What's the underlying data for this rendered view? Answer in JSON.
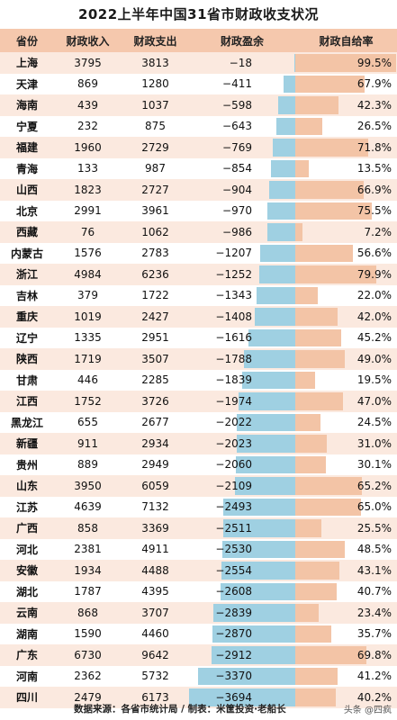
{
  "title": "2022上半年中国31省市财政收支状况",
  "headers": [
    "省份",
    "财政收入",
    "财政支出",
    "财政盈余",
    "财政自给率"
  ],
  "rows": [
    {
      "province": "上海",
      "income": "3795",
      "expense": "3813",
      "surplus": "−18",
      "surplus_value": -18,
      "ratio": "99.5%",
      "ratio_value": 99.5
    },
    {
      "province": "天津",
      "income": "869",
      "expense": "1280",
      "surplus": "−411",
      "surplus_value": -411,
      "ratio": "67.9%",
      "ratio_value": 67.9
    },
    {
      "province": "海南",
      "income": "439",
      "expense": "1037",
      "surplus": "−598",
      "surplus_value": -598,
      "ratio": "42.3%",
      "ratio_value": 42.3
    },
    {
      "province": "宁夏",
      "income": "232",
      "expense": "875",
      "surplus": "−643",
      "surplus_value": -643,
      "ratio": "26.5%",
      "ratio_value": 26.5
    },
    {
      "province": "福建",
      "income": "1960",
      "expense": "2729",
      "surplus": "−769",
      "surplus_value": -769,
      "ratio": "71.8%",
      "ratio_value": 71.8
    },
    {
      "province": "青海",
      "income": "133",
      "expense": "987",
      "surplus": "−854",
      "surplus_value": -854,
      "ratio": "13.5%",
      "ratio_value": 13.5
    },
    {
      "province": "山西",
      "income": "1823",
      "expense": "2727",
      "surplus": "−904",
      "surplus_value": -904,
      "ratio": "66.9%",
      "ratio_value": 66.9
    },
    {
      "province": "北京",
      "income": "2991",
      "expense": "3961",
      "surplus": "−970",
      "surplus_value": -970,
      "ratio": "75.5%",
      "ratio_value": 75.5
    },
    {
      "province": "西藏",
      "income": "76",
      "expense": "1062",
      "surplus": "−986",
      "surplus_value": -986,
      "ratio": "7.2%",
      "ratio_value": 7.2
    },
    {
      "province": "内蒙古",
      "income": "1576",
      "expense": "2783",
      "surplus": "−1207",
      "surplus_value": -1207,
      "ratio": "56.6%",
      "ratio_value": 56.6
    },
    {
      "province": "浙江",
      "income": "4984",
      "expense": "6236",
      "surplus": "−1252",
      "surplus_value": -1252,
      "ratio": "79.9%",
      "ratio_value": 79.9
    },
    {
      "province": "吉林",
      "income": "379",
      "expense": "1722",
      "surplus": "−1343",
      "surplus_value": -1343,
      "ratio": "22.0%",
      "ratio_value": 22.0
    },
    {
      "province": "重庆",
      "income": "1019",
      "expense": "2427",
      "surplus": "−1408",
      "surplus_value": -1408,
      "ratio": "42.0%",
      "ratio_value": 42.0
    },
    {
      "province": "辽宁",
      "income": "1335",
      "expense": "2951",
      "surplus": "−1616",
      "surplus_value": -1616,
      "ratio": "45.2%",
      "ratio_value": 45.2
    },
    {
      "province": "陕西",
      "income": "1719",
      "expense": "3507",
      "surplus": "−1788",
      "surplus_value": -1788,
      "ratio": "49.0%",
      "ratio_value": 49.0
    },
    {
      "province": "甘肃",
      "income": "446",
      "expense": "2285",
      "surplus": "−1839",
      "surplus_value": -1839,
      "ratio": "19.5%",
      "ratio_value": 19.5
    },
    {
      "province": "江西",
      "income": "1752",
      "expense": "3726",
      "surplus": "−1974",
      "surplus_value": -1974,
      "ratio": "47.0%",
      "ratio_value": 47.0
    },
    {
      "province": "黑龙江",
      "income": "655",
      "expense": "2677",
      "surplus": "−2022",
      "surplus_value": -2022,
      "ratio": "24.5%",
      "ratio_value": 24.5
    },
    {
      "province": "新疆",
      "income": "911",
      "expense": "2934",
      "surplus": "−2023",
      "surplus_value": -2023,
      "ratio": "31.0%",
      "ratio_value": 31.0
    },
    {
      "province": "贵州",
      "income": "889",
      "expense": "2949",
      "surplus": "−2060",
      "surplus_value": -2060,
      "ratio": "30.1%",
      "ratio_value": 30.1
    },
    {
      "province": "山东",
      "income": "3950",
      "expense": "6059",
      "surplus": "−2109",
      "surplus_value": -2109,
      "ratio": "65.2%",
      "ratio_value": 65.2
    },
    {
      "province": "江苏",
      "income": "4639",
      "expense": "7132",
      "surplus": "−2493",
      "surplus_value": -2493,
      "ratio": "65.0%",
      "ratio_value": 65.0
    },
    {
      "province": "广西",
      "income": "858",
      "expense": "3369",
      "surplus": "−2511",
      "surplus_value": -2511,
      "ratio": "25.5%",
      "ratio_value": 25.5
    },
    {
      "province": "河北",
      "income": "2381",
      "expense": "4911",
      "surplus": "−2530",
      "surplus_value": -2530,
      "ratio": "48.5%",
      "ratio_value": 48.5
    },
    {
      "province": "安徽",
      "income": "1934",
      "expense": "4488",
      "surplus": "−2554",
      "surplus_value": -2554,
      "ratio": "43.1%",
      "ratio_value": 43.1
    },
    {
      "province": "湖北",
      "income": "1787",
      "expense": "4395",
      "surplus": "−2608",
      "surplus_value": -2608,
      "ratio": "40.7%",
      "ratio_value": 40.7
    },
    {
      "province": "云南",
      "income": "868",
      "expense": "3707",
      "surplus": "−2839",
      "surplus_value": -2839,
      "ratio": "23.4%",
      "ratio_value": 23.4
    },
    {
      "province": "湖南",
      "income": "1590",
      "expense": "4460",
      "surplus": "−2870",
      "surplus_value": -2870,
      "ratio": "35.7%",
      "ratio_value": 35.7
    },
    {
      "province": "广东",
      "income": "6730",
      "expense": "9642",
      "surplus": "−2912",
      "surplus_value": -2912,
      "ratio": "69.8%",
      "ratio_value": 69.8
    },
    {
      "province": "河南",
      "income": "2362",
      "expense": "5732",
      "surplus": "−3370",
      "surplus_value": -3370,
      "ratio": "41.2%",
      "ratio_value": 41.2
    },
    {
      "province": "四川",
      "income": "2479",
      "expense": "6173",
      "surplus": "−3694",
      "surplus_value": -3694,
      "ratio": "40.2%",
      "ratio_value": 40.2
    }
  ],
  "footer": {
    "source": "数据来源：各省市统计局 / 制表：米筐投资·老船长",
    "watermark": "头条 @四疯"
  },
  "colors": {
    "header_bg": "#f5c8ad",
    "stripe_bg": "#fbe9df",
    "surplus_bar": "#9fd0e2",
    "ratio_bar": "#f3c4a6"
  }
}
